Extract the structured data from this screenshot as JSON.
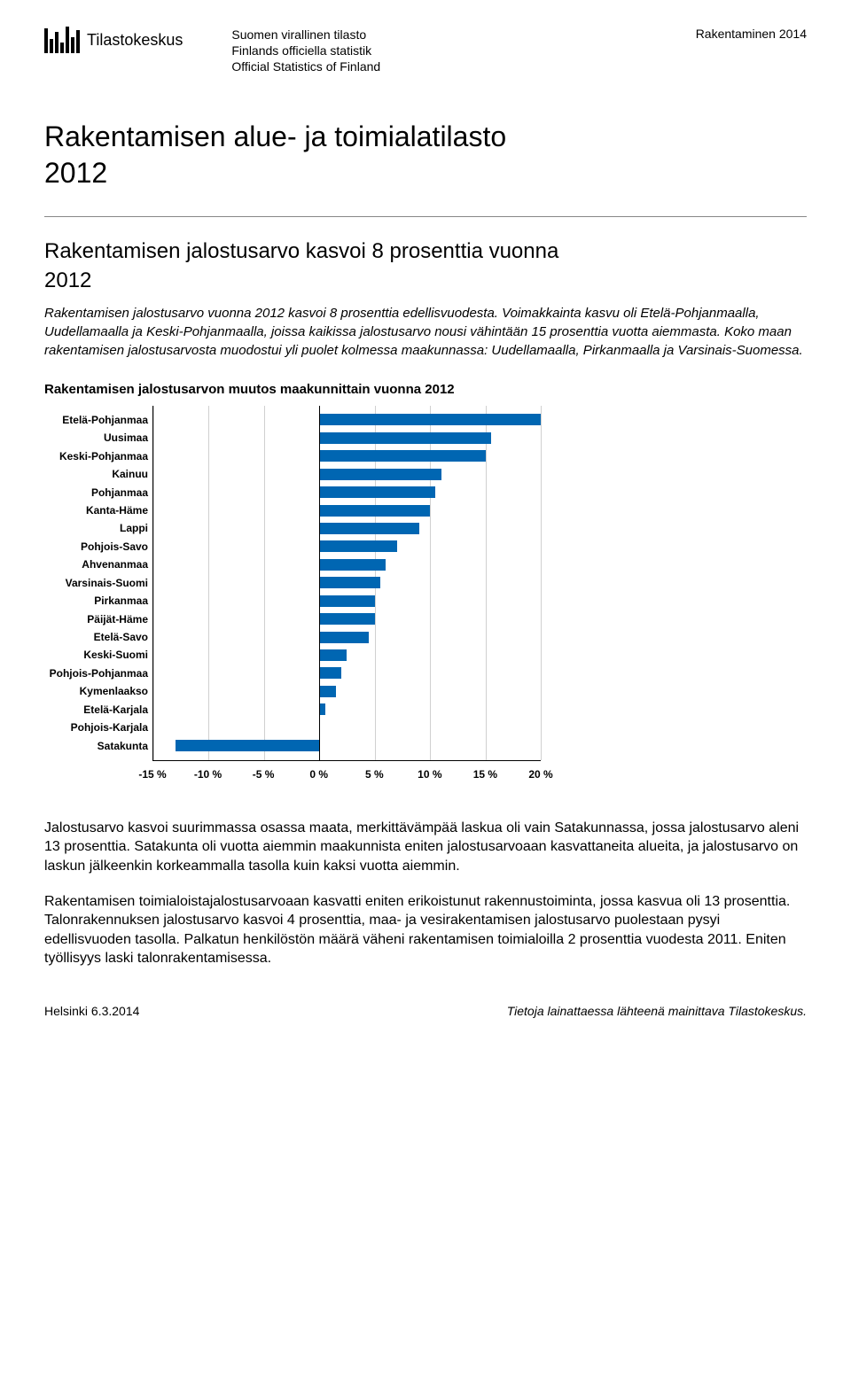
{
  "header": {
    "org_name": "Tilastokeskus",
    "lines": [
      "Suomen virallinen tilasto",
      "Finlands officiella statistik",
      "Official Statistics of Finland"
    ],
    "topic": "Rakentaminen 2014"
  },
  "title_line1": "Rakentamisen alue- ja toimialatilasto",
  "title_year": "2012",
  "subtitle_line1": "Rakentamisen jalostusarvo kasvoi 8 prosenttia vuonna",
  "subtitle_year": "2012",
  "lead": "Rakentamisen jalostusarvo vuonna 2012 kasvoi 8 prosenttia edellisvuodesta. Voimakkainta kasvu oli Etelä-Pohjanmaalla, Uudellamaalla ja Keski-Pohjanmaalla, joissa kaikissa jalostusarvo nousi vähintään 15 prosenttia vuotta aiemmasta. Koko maan rakentamisen jalostusarvosta muodostui yli puolet kolmessa maakunnassa: Uudellamaalla, Pirkanmaalla ja Varsinais-Suomessa.",
  "chart": {
    "title": "Rakentamisen jalostusarvon muutos maakunnittain vuonna 2012",
    "type": "bar-horizontal",
    "x_min": -15,
    "x_max": 20,
    "x_ticks": [
      "-15 %",
      "-10 %",
      "-5 %",
      "0 %",
      "5 %",
      "10 %",
      "15 %",
      "20 %"
    ],
    "x_tick_vals": [
      -15,
      -10,
      -5,
      0,
      5,
      10,
      15,
      20
    ],
    "bar_color": "#0066b2",
    "grid_color": "#d0d0d0",
    "background": "#ffffff",
    "label_fontsize": 12,
    "categories": [
      {
        "label": "Etelä-Pohjanmaa",
        "value": 20
      },
      {
        "label": "Uusimaa",
        "value": 15.5
      },
      {
        "label": "Keski-Pohjanmaa",
        "value": 15
      },
      {
        "label": "Kainuu",
        "value": 11
      },
      {
        "label": "Pohjanmaa",
        "value": 10.5
      },
      {
        "label": "Kanta-Häme",
        "value": 10
      },
      {
        "label": "Lappi",
        "value": 9
      },
      {
        "label": "Pohjois-Savo",
        "value": 7
      },
      {
        "label": "Ahvenanmaa",
        "value": 6
      },
      {
        "label": "Varsinais-Suomi",
        "value": 5.5
      },
      {
        "label": "Pirkanmaa",
        "value": 5
      },
      {
        "label": "Päijät-Häme",
        "value": 5
      },
      {
        "label": "Etelä-Savo",
        "value": 4.5
      },
      {
        "label": "Keski-Suomi",
        "value": 2.5
      },
      {
        "label": "Pohjois-Pohjanmaa",
        "value": 2
      },
      {
        "label": "Kymenlaakso",
        "value": 1.5
      },
      {
        "label": "Etelä-Karjala",
        "value": 0.5
      },
      {
        "label": "Pohjois-Karjala",
        "value": 0
      },
      {
        "label": "Satakunta",
        "value": -13
      }
    ]
  },
  "para1": "Jalostusarvo kasvoi suurimmassa osassa maata, merkittävämpää laskua oli vain Satakunnassa, jossa jalostusarvo aleni 13 prosenttia. Satakunta oli vuotta aiemmin maakunnista eniten jalostusarvoaan kasvattaneita alueita, ja jalostusarvo on laskun jälkeenkin korkeammalla tasolla kuin kaksi vuotta aiemmin.",
  "para2": "Rakentamisen toimialoistajalostusarvoaan kasvatti eniten erikoistunut rakennustoiminta, jossa kasvua oli 13 prosenttia. Talonrakennuksen jalostusarvo kasvoi 4 prosenttia, maa- ja vesirakentamisen jalostusarvo puolestaan pysyi edellisvuoden tasolla. Palkatun henkilöstön määrä väheni rakentamisen toimialoilla 2 prosenttia vuodesta 2011. Eniten työllisyys laski talonrakentamisessa.",
  "footer": {
    "left": "Helsinki 6.3.2014",
    "right": "Tietoja lainattaessa lähteenä mainittava Tilastokeskus."
  }
}
